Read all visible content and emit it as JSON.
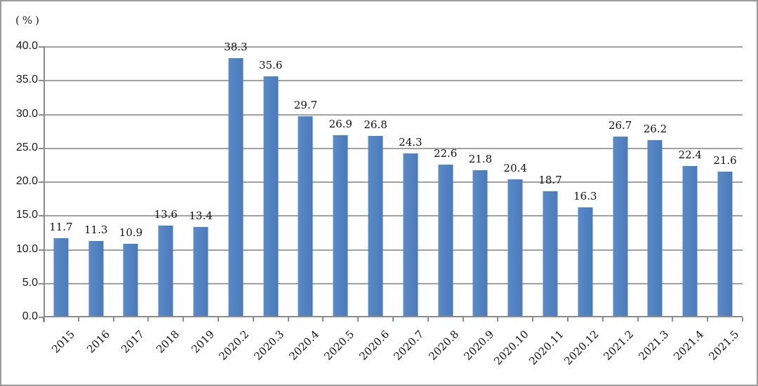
{
  "chart_data": {
    "type": "bar",
    "title": "",
    "unit_label": "(%)",
    "categories": [
      "2015",
      "2016",
      "2017",
      "2018",
      "2019",
      "2020.2",
      "2020.3",
      "2020.4",
      "2020.5",
      "2020.6",
      "2020.7",
      "2020.8",
      "2020.9",
      "2020.10",
      "2020.11",
      "2020.12",
      "2021.2",
      "2021.3",
      "2021.4",
      "2021.5"
    ],
    "values": [
      11.7,
      11.3,
      10.9,
      13.6,
      13.4,
      38.3,
      35.6,
      29.7,
      26.9,
      26.8,
      24.3,
      22.6,
      21.8,
      20.4,
      18.7,
      16.3,
      26.7,
      26.2,
      22.4,
      21.6
    ],
    "data_labels_shown": true,
    "xlabel": "",
    "ylabel": "(%)",
    "ylim": [
      0,
      40
    ],
    "ytick_step": 5,
    "ytick_labels": [
      "0.0",
      "5.0",
      "10.0",
      "15.0",
      "20.0",
      "25.0",
      "30.0",
      "35.0",
      "40.0"
    ],
    "grid": true,
    "legend": "none",
    "colors": {
      "bar": "#4A7BBA",
      "gridline": "#A0A0A0",
      "axis": "#8C8C8C",
      "text": "#1A1A1A",
      "frame_border": "#9A9A9A",
      "background": "#FFFFFF"
    }
  }
}
